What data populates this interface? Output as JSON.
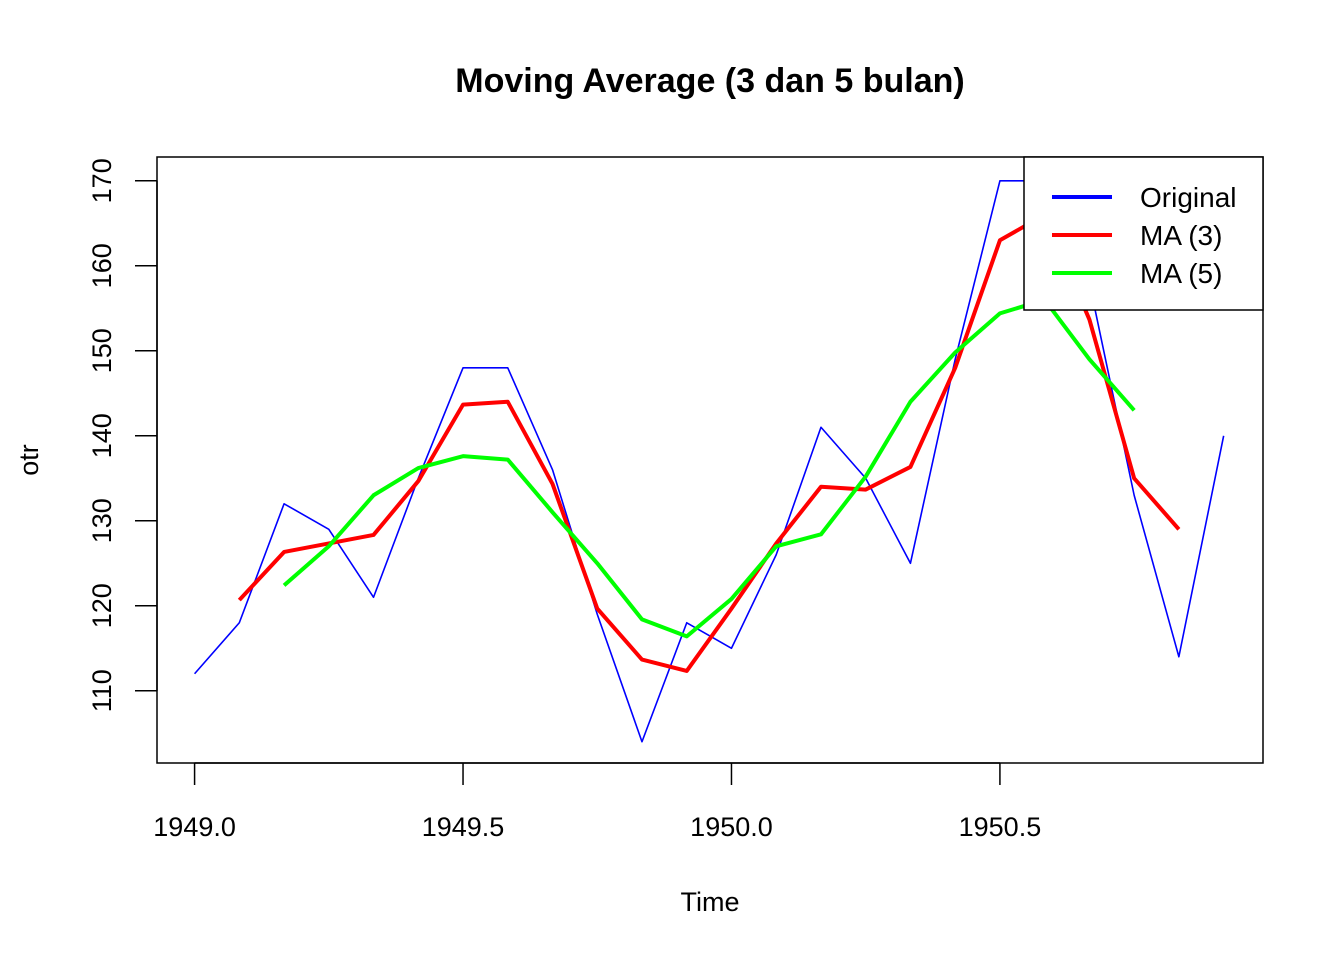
{
  "chart_data": {
    "type": "line",
    "title": "Moving Average (3 dan 5 bulan)",
    "xlabel": "Time",
    "ylabel": "otr",
    "xlim": [
      1948.93,
      1950.99
    ],
    "ylim": [
      101.5,
      172.8
    ],
    "xticks": [
      1949.0,
      1949.5,
      1950.0,
      1950.5
    ],
    "xtick_labels": [
      "1949.0",
      "1949.5",
      "1950.0",
      "1950.5"
    ],
    "yticks": [
      110,
      120,
      130,
      140,
      150,
      160,
      170
    ],
    "ytick_labels": [
      "110",
      "120",
      "130",
      "140",
      "150",
      "160",
      "170"
    ],
    "grid": false,
    "legend_position": "top-right",
    "series": [
      {
        "name": "Original",
        "color": "#0000FF",
        "width": "thin",
        "x": [
          1949.0,
          1949.0833,
          1949.1667,
          1949.25,
          1949.3333,
          1949.4167,
          1949.5,
          1949.5833,
          1949.6667,
          1949.75,
          1949.8333,
          1949.9167,
          1950.0,
          1950.0833,
          1950.1667,
          1950.25,
          1950.3333,
          1950.4167,
          1950.5,
          1950.5833,
          1950.6667,
          1950.75,
          1950.8333,
          1950.9167
        ],
        "y": [
          112,
          118,
          132,
          129,
          121,
          135,
          148,
          148,
          136,
          119,
          104,
          118,
          115,
          126,
          141,
          135,
          125,
          149,
          170,
          170,
          158,
          133,
          114,
          140
        ]
      },
      {
        "name": "MA (3)",
        "color": "#FF0000",
        "width": "thick",
        "x": [
          1949.0833,
          1949.1667,
          1949.25,
          1949.3333,
          1949.4167,
          1949.5,
          1949.5833,
          1949.6667,
          1949.75,
          1949.8333,
          1949.9167,
          1950.0,
          1950.0833,
          1950.1667,
          1950.25,
          1950.3333,
          1950.4167,
          1950.5,
          1950.5833,
          1950.6667,
          1950.75,
          1950.8333
        ],
        "y": [
          120.67,
          126.33,
          127.33,
          128.33,
          134.67,
          143.67,
          144.0,
          134.33,
          119.67,
          113.67,
          112.33,
          119.67,
          127.33,
          134.0,
          133.67,
          136.33,
          148.0,
          163.0,
          166.0,
          153.67,
          135.0,
          129.0
        ]
      },
      {
        "name": "MA (5)",
        "color": "#00FF00",
        "width": "thick",
        "x": [
          1949.1667,
          1949.25,
          1949.3333,
          1949.4167,
          1949.5,
          1949.5833,
          1949.6667,
          1949.75,
          1949.8333,
          1949.9167,
          1950.0,
          1950.0833,
          1950.1667,
          1950.25,
          1950.3333,
          1950.4167,
          1950.5,
          1950.5833,
          1950.6667,
          1950.75
        ],
        "y": [
          122.4,
          127.0,
          133.0,
          136.2,
          137.6,
          137.2,
          131.0,
          125.0,
          118.4,
          116.4,
          120.8,
          127.0,
          128.4,
          135.2,
          144.0,
          149.8,
          154.4,
          156.0,
          149.0,
          143.0
        ]
      }
    ]
  }
}
